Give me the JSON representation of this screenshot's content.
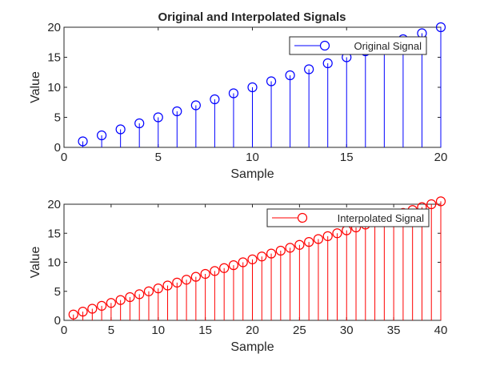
{
  "title": "Original and Interpolated Signals",
  "chart_data": [
    {
      "type": "stem",
      "title": "Original and Interpolated Signals",
      "xlabel": "Sample",
      "ylabel": "Value",
      "xlim": [
        0,
        20
      ],
      "ylim": [
        0,
        20
      ],
      "xticks": [
        "0",
        "5",
        "10",
        "15",
        "20"
      ],
      "yticks": [
        "0",
        "5",
        "10",
        "15",
        "20"
      ],
      "grid": false,
      "legend_position": "top-right",
      "color": "#0000ff",
      "series": [
        {
          "name": "Original Signal",
          "x": [
            1,
            2,
            3,
            4,
            5,
            6,
            7,
            8,
            9,
            10,
            11,
            12,
            13,
            14,
            15,
            16,
            17,
            18,
            19,
            20
          ],
          "values": [
            1,
            2,
            3,
            4,
            5,
            6,
            7,
            8,
            9,
            10,
            11,
            12,
            13,
            14,
            15,
            16,
            17,
            18,
            19,
            20
          ]
        }
      ]
    },
    {
      "type": "stem",
      "title": "",
      "xlabel": "Sample",
      "ylabel": "Value",
      "xlim": [
        0,
        40
      ],
      "ylim": [
        0,
        20
      ],
      "xticks": [
        "0",
        "5",
        "10",
        "15",
        "20",
        "25",
        "30",
        "35",
        "40"
      ],
      "yticks": [
        "0",
        "5",
        "10",
        "15",
        "20"
      ],
      "grid": false,
      "legend_position": "top-right",
      "color": "#ff0000",
      "series": [
        {
          "name": "Interpolated Signal",
          "x": [
            1,
            2,
            3,
            4,
            5,
            6,
            7,
            8,
            9,
            10,
            11,
            12,
            13,
            14,
            15,
            16,
            17,
            18,
            19,
            20,
            21,
            22,
            23,
            24,
            25,
            26,
            27,
            28,
            29,
            30,
            31,
            32,
            33,
            34,
            35,
            36,
            37,
            38,
            39,
            40
          ],
          "values": [
            1,
            1.5,
            2,
            2.5,
            3,
            3.5,
            4,
            4.5,
            5,
            5.5,
            6,
            6.5,
            7,
            7.5,
            8,
            8.5,
            9,
            9.5,
            10,
            10.5,
            11,
            11.5,
            12,
            12.5,
            13,
            13.5,
            14,
            14.5,
            15,
            15.5,
            16,
            16.5,
            17,
            17.5,
            18,
            18.5,
            19,
            19.5,
            20,
            20.5
          ]
        }
      ]
    }
  ]
}
